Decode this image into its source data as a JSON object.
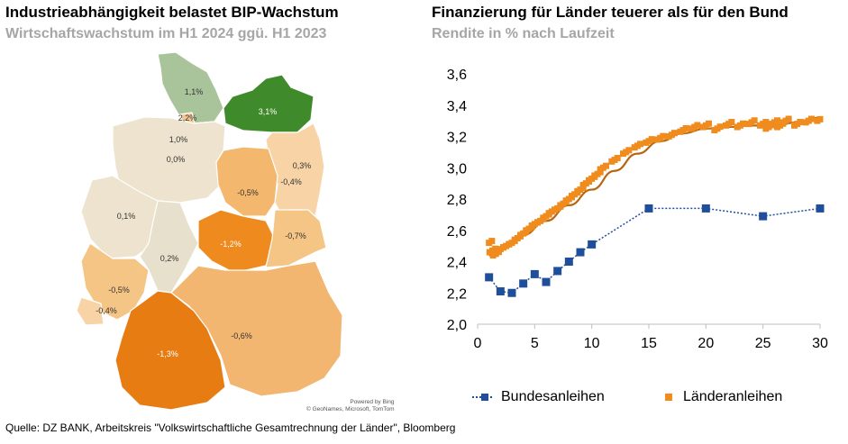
{
  "left": {
    "title": "Industrieabhängigkeit belastet BIP-Wachstum",
    "subtitle": "Wirtschaftswachstum im H1 2024 ggü. H1 2023"
  },
  "right": {
    "title": "Finanzierung für Länder teuerer als für den Bund",
    "subtitle": "Rendite in % nach Laufzeit"
  },
  "map": {
    "attribution_line1": "Powered by Bing",
    "attribution_line2": "© GeoNames, Microsoft, TomTom",
    "regions": [
      {
        "name": "Schleswig-Holstein",
        "label": "1,1%",
        "color": "#a9c49a"
      },
      {
        "name": "Hamburg",
        "label": "2,2%",
        "color": "#f4c78f"
      },
      {
        "name": "Mecklenburg-Vorpommern",
        "label": "3,1%",
        "color": "#3f8a2a"
      },
      {
        "name": "Bremen",
        "label": "1,0%",
        "color": "#f08c1e"
      },
      {
        "name": "Niedersachsen",
        "label": "0,0%",
        "color": "#ede3cf"
      },
      {
        "name": "Berlin",
        "label": "0,3%",
        "color": "#e7ddc6"
      },
      {
        "name": "Brandenburg",
        "label": "-0,4%",
        "color": "#f7d3a6"
      },
      {
        "name": "Sachsen-Anhalt",
        "label": "-0,5%",
        "color": "#f3b76e"
      },
      {
        "name": "Nordrhein-Westfalen",
        "label": "0,1%",
        "color": "#ede3cf"
      },
      {
        "name": "Hessen",
        "label": "0,2%",
        "color": "#e7e0cc"
      },
      {
        "name": "Thüringen",
        "label": "-1,2%",
        "color": "#ee8a1e"
      },
      {
        "name": "Sachsen",
        "label": "-0,7%",
        "color": "#f5c585"
      },
      {
        "name": "Rheinland-Pfalz",
        "label": "-0,5%",
        "color": "#f5c585"
      },
      {
        "name": "Saarland",
        "label": "-0,4%",
        "color": "#f7d3a6"
      },
      {
        "name": "Bayern",
        "label": "-0,6%",
        "color": "#f2b670"
      },
      {
        "name": "Baden-Württemberg",
        "label": "-1,3%",
        "color": "#e67c12"
      }
    ]
  },
  "chart_data": {
    "type": "scatter",
    "title": "Finanzierung für Länder teuerer als für den Bund",
    "ylabel": "Rendite in % nach Laufzeit",
    "xlim": [
      0,
      30
    ],
    "ylim": [
      2.0,
      3.6
    ],
    "x_ticks": [
      "0",
      "5",
      "10",
      "15",
      "20",
      "25",
      "30"
    ],
    "y_ticks": [
      "2,0",
      "2,2",
      "2,4",
      "2,6",
      "2,8",
      "3,0",
      "3,2",
      "3,4",
      "3,6"
    ],
    "legend_position": "bottom",
    "series": [
      {
        "name": "Bundesanleihen",
        "color": "#1f4e9b",
        "style": "dotted-line-with-square-markers",
        "x": [
          1,
          2,
          3,
          4,
          5,
          6,
          7,
          8,
          9,
          10,
          15,
          20,
          25,
          30
        ],
        "y": [
          2.3,
          2.21,
          2.2,
          2.26,
          2.32,
          2.27,
          2.34,
          2.4,
          2.46,
          2.51,
          2.74,
          2.74,
          2.69,
          2.74
        ]
      },
      {
        "name": "Länderanleihen",
        "color": "#f08c1e",
        "style": "square-markers-with-trend-curve",
        "x": [
          1.0,
          1.3,
          1.6,
          2.0,
          2.5,
          3.0,
          3.5,
          4.0,
          4.5,
          5.0,
          5.5,
          6.0,
          6.5,
          7.0,
          7.5,
          8.0,
          8.5,
          9.0,
          9.5,
          10.0,
          10.5,
          11.0,
          12.0,
          13.0,
          14.0,
          15.0,
          16.0,
          17.0,
          18.0,
          19.0,
          20.0,
          21.0,
          22.0,
          23.0,
          24.0,
          25.0,
          25.5,
          26.0,
          26.5,
          27.0,
          28.0,
          29.0,
          30.0
        ],
        "y": [
          2.52,
          2.47,
          2.45,
          2.48,
          2.5,
          2.52,
          2.55,
          2.58,
          2.61,
          2.64,
          2.66,
          2.69,
          2.72,
          2.74,
          2.77,
          2.8,
          2.83,
          2.86,
          2.9,
          2.93,
          2.96,
          3.0,
          3.05,
          3.1,
          3.14,
          3.17,
          3.19,
          3.21,
          3.24,
          3.26,
          3.27,
          3.25,
          3.28,
          3.27,
          3.29,
          3.28,
          3.26,
          3.29,
          3.27,
          3.3,
          3.28,
          3.3,
          3.31
        ]
      }
    ],
    "trend_curve": {
      "x": [
        1,
        2,
        4,
        6,
        8,
        10,
        12,
        14,
        16,
        18,
        20,
        22,
        24,
        26,
        28,
        30
      ],
      "y": [
        2.44,
        2.48,
        2.57,
        2.66,
        2.76,
        2.86,
        2.98,
        3.09,
        3.17,
        3.22,
        3.25,
        3.26,
        3.27,
        3.27,
        3.29,
        3.32
      ]
    }
  },
  "footer": {
    "source": "Quelle: DZ BANK, Arbeitskreis \"Volkswirtschaftliche Gesamtrechnung der Länder\", Bloomberg"
  }
}
